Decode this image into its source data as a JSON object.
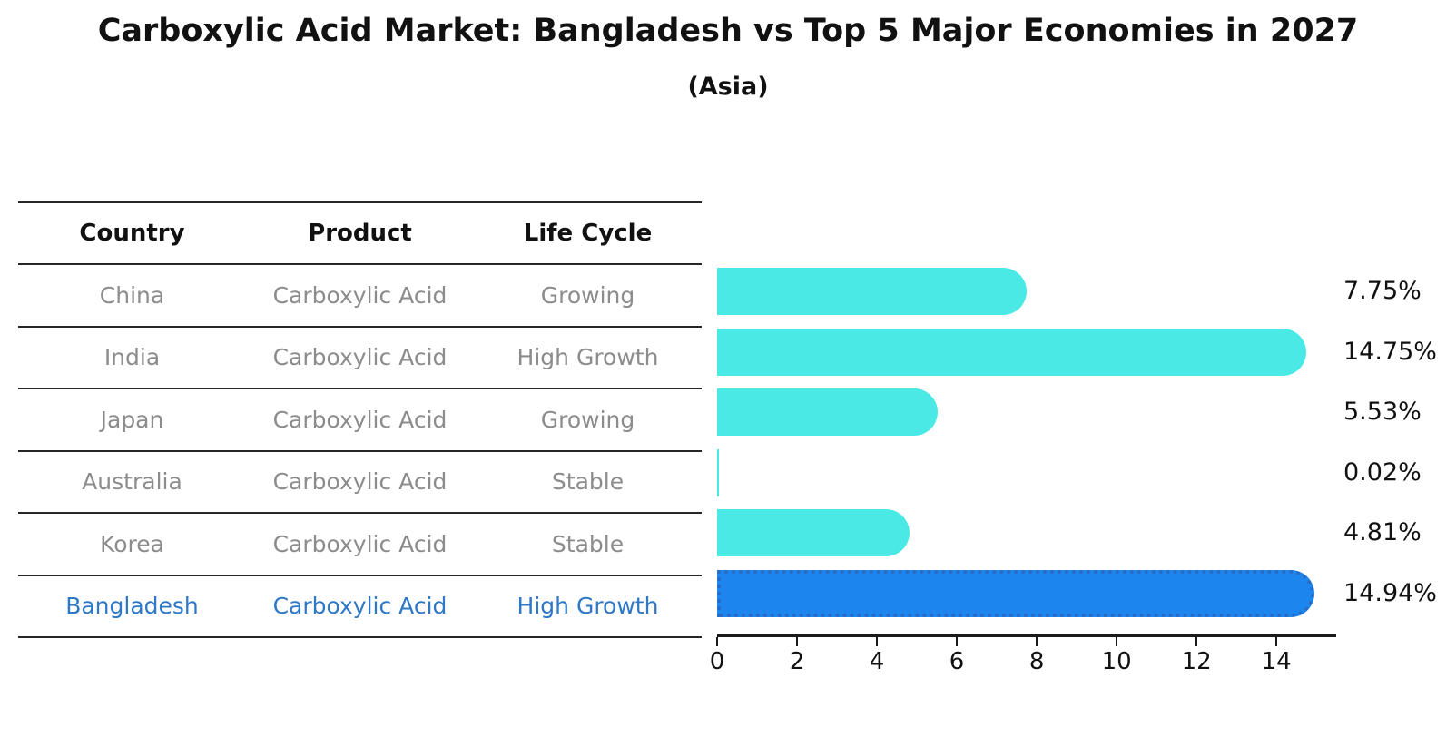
{
  "title": "Carboxylic Acid Market: Bangladesh vs Top 5 Major Economies in 2027",
  "subtitle": "(Asia)",
  "table": {
    "headers": [
      "Country",
      "Product",
      "Life Cycle"
    ],
    "rows": [
      {
        "country": "China",
        "product": "Carboxylic Acid",
        "life_cycle": "Growing"
      },
      {
        "country": "India",
        "product": "Carboxylic Acid",
        "life_cycle": "High Growth"
      },
      {
        "country": "Japan",
        "product": "Carboxylic Acid",
        "life_cycle": "Growing"
      },
      {
        "country": "Australia",
        "product": "Carboxylic Acid",
        "life_cycle": "Stable"
      },
      {
        "country": "Korea",
        "product": "Carboxylic Acid",
        "life_cycle": "Stable"
      },
      {
        "country": "Bangladesh",
        "product": "Carboxylic Acid",
        "life_cycle": "High Growth"
      }
    ],
    "highlight_row": "Bangladesh"
  },
  "chart_data": {
    "type": "bar",
    "orientation": "horizontal",
    "title": "Carboxylic Acid Market: Bangladesh vs Top 5 Major Economies in 2027",
    "subtitle": "(Asia)",
    "categories": [
      "China",
      "India",
      "Japan",
      "Australia",
      "Korea",
      "Bangladesh"
    ],
    "values": [
      7.75,
      14.75,
      5.53,
      0.02,
      4.81,
      14.94
    ],
    "value_labels": [
      "7.75%",
      "14.75%",
      "5.53%",
      "0.02%",
      "4.81%",
      "14.94%"
    ],
    "xlabel": "",
    "ylabel": "",
    "xlim": [
      0,
      15.45
    ],
    "xticks": [
      0,
      2,
      4,
      6,
      8,
      10,
      12,
      14
    ],
    "grid": false,
    "legend": false,
    "bar_color": "#4be9e6",
    "highlight_index": 5,
    "highlight_bar_color": "#1c85ee",
    "highlight_border_color": "#2a6cc4",
    "highlight_text_color": "#2e78c8"
  },
  "colors": {
    "background": "#ffffff",
    "text": "#111111",
    "muted_text": "#8c8c8c",
    "line": "#262626"
  }
}
